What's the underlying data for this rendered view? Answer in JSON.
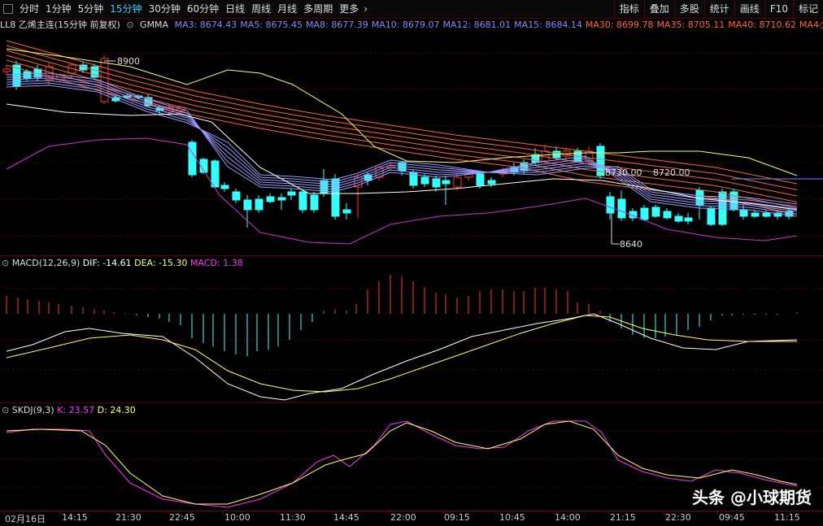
{
  "toolbar": {
    "periods": [
      "分时",
      "1分钟",
      "5分钟",
      "15分钟",
      "30分钟",
      "60分钟",
      "日线",
      "周线",
      "月线",
      "多周期",
      "更多"
    ],
    "active": "15分钟",
    "right_buttons": [
      "指标",
      "叠加",
      "多股",
      "统计",
      "画线",
      "F10",
      "标记"
    ]
  },
  "title": {
    "symbol": "LL8 乙烯主连(15分钟 前复权)",
    "indicator": "GMMA",
    "ma": [
      {
        "label": "MA3: 8674.43",
        "color": "#8888ff"
      },
      {
        "label": "MA5: 8675.45",
        "color": "#8888ff"
      },
      {
        "label": "MA8: 8677.39",
        "color": "#8888ff"
      },
      {
        "label": "MA10: 8679.07",
        "color": "#8888ff"
      },
      {
        "label": "MA12: 8681.01",
        "color": "#8888ff"
      },
      {
        "label": "MA15: 8684.14",
        "color": "#8888ff"
      },
      {
        "label": "MA30: 8699.78",
        "color": "#ff6633"
      },
      {
        "label": "MA35: 8705.11",
        "color": "#ff6633"
      },
      {
        "label": "MA40: 8710.62",
        "color": "#ff6633"
      },
      {
        "label": "MA4◇",
        "color": "#ff6633"
      }
    ]
  },
  "price_annotations": {
    "high": "8900",
    "low": "8640",
    "mid1": "8730.00",
    "mid2": "8720.00"
  },
  "macd": {
    "name": "MACD(12,26,9)",
    "dif": "DIF: -14.61",
    "dea": "DEA: -15.30",
    "macd": "MACD: 1.38"
  },
  "skdj": {
    "name": "SKDJ(9,3)",
    "k": "K: 23.57",
    "d": "D: 24.30"
  },
  "time_axis": [
    "02月16日",
    "14:15",
    "21:30",
    "22:45",
    "10:00",
    "11:30",
    "14:45",
    "22:00",
    "09:15",
    "10:45",
    "14:00",
    "21:15",
    "22:30",
    "09:45",
    "11:15"
  ],
  "watermark": "头条 @小球期货",
  "colors": {
    "up": "#ff3333",
    "down": "#33ffff",
    "ma_short": "#8888ff",
    "ma_long": "#ff6633",
    "dif": "#ffffff",
    "dea": "#ffff66",
    "k": "#ff33ff",
    "d": "#ffff66"
  }
}
